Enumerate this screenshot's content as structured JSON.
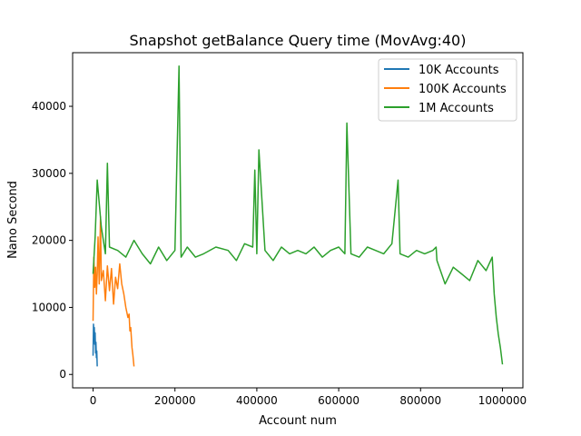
{
  "chart_data": {
    "type": "line",
    "title": "Snapshot getBalance Query time (MovAvg:40)",
    "xlabel": "Account num",
    "ylabel": "Nano Second",
    "xlim": [
      -50000,
      1050000
    ],
    "ylim": [
      -2000,
      48000
    ],
    "xticks": [
      0,
      200000,
      400000,
      600000,
      800000,
      1000000
    ],
    "xtick_labels": [
      "0",
      "200000",
      "400000",
      "600000",
      "800000",
      "1000000"
    ],
    "yticks": [
      0,
      10000,
      20000,
      30000,
      40000
    ],
    "ytick_labels": [
      "0",
      "10000",
      "20000",
      "30000",
      "40000"
    ],
    "grid": false,
    "legend_position": "top-right",
    "series": [
      {
        "name": "10K Accounts",
        "color": "#1f77b4",
        "x": [
          0,
          1000,
          2000,
          3000,
          4000,
          5000,
          6000,
          7000,
          8000,
          9000,
          10000
        ],
        "y": [
          2800,
          7500,
          5500,
          7000,
          4500,
          6200,
          3200,
          4800,
          2500,
          3500,
          1200
        ]
      },
      {
        "name": "100K Accounts",
        "color": "#ff7f0e",
        "x": [
          0,
          2000,
          4000,
          6000,
          8000,
          10000,
          12000,
          15000,
          18000,
          20000,
          25000,
          30000,
          35000,
          40000,
          45000,
          50000,
          55000,
          60000,
          65000,
          70000,
          75000,
          80000,
          85000,
          88000,
          90000,
          92000,
          95000,
          97000,
          100000
        ],
        "y": [
          8000,
          17500,
          13000,
          16000,
          12000,
          15000,
          20500,
          13500,
          23500,
          14000,
          15500,
          11000,
          16200,
          12500,
          15800,
          10500,
          14500,
          12800,
          16500,
          13500,
          12000,
          10000,
          8500,
          9000,
          6500,
          7000,
          4000,
          3000,
          1200
        ]
      },
      {
        "name": "1M Accounts",
        "color": "#2ca02c",
        "x": [
          0,
          5000,
          10000,
          20000,
          30000,
          35000,
          40000,
          60000,
          80000,
          100000,
          120000,
          140000,
          160000,
          180000,
          200000,
          210000,
          215000,
          230000,
          250000,
          270000,
          300000,
          330000,
          350000,
          370000,
          390000,
          395000,
          400000,
          405000,
          420000,
          440000,
          460000,
          480000,
          500000,
          520000,
          540000,
          560000,
          580000,
          600000,
          615000,
          620000,
          630000,
          650000,
          670000,
          690000,
          710000,
          730000,
          745000,
          750000,
          770000,
          790000,
          810000,
          830000,
          838000,
          840000,
          860000,
          880000,
          900000,
          920000,
          940000,
          960000,
          975000,
          980000,
          985000,
          990000,
          995000,
          1000000
        ],
        "y": [
          15000,
          20500,
          29000,
          22000,
          18000,
          31500,
          19000,
          18500,
          17500,
          20000,
          18000,
          16500,
          19000,
          17000,
          18500,
          46000,
          17500,
          19000,
          17500,
          18000,
          19000,
          18500,
          17000,
          19500,
          19000,
          30500,
          18000,
          33500,
          18500,
          17000,
          19000,
          18000,
          18500,
          18000,
          19000,
          17500,
          18500,
          19000,
          18000,
          37500,
          18000,
          17500,
          19000,
          18500,
          18000,
          19500,
          29000,
          18000,
          17500,
          18500,
          18000,
          18500,
          19000,
          17000,
          13500,
          16000,
          15000,
          14000,
          17000,
          15500,
          17500,
          12000,
          8500,
          6000,
          4000,
          1500
        ]
      }
    ]
  }
}
